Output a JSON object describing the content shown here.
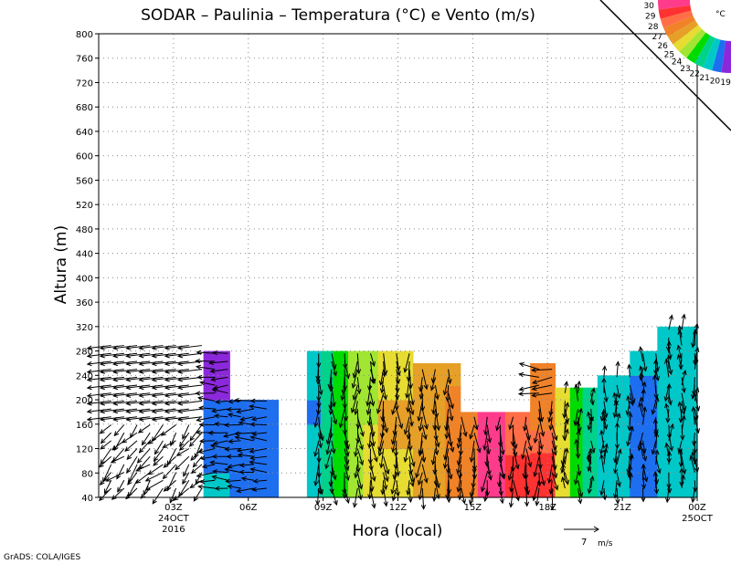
{
  "chart_data": {
    "type": "heatmap",
    "title": "SODAR – Paulinia – Temperatura (°C) e Vento (m/s)",
    "xlabel": "Hora (local)",
    "ylabel": "Altura (m)",
    "xlim": [
      0,
      24
    ],
    "ylim": [
      40,
      800
    ],
    "y_ticks": [
      40,
      80,
      120,
      160,
      200,
      240,
      280,
      320,
      360,
      400,
      440,
      480,
      520,
      560,
      600,
      640,
      680,
      720,
      760,
      800
    ],
    "x_ticks": [
      {
        "x": 3,
        "label": "03Z",
        "sub1": "24OCT",
        "sub2": "2016"
      },
      {
        "x": 6,
        "label": "06Z"
      },
      {
        "x": 9,
        "label": "09Z"
      },
      {
        "x": 12,
        "label": "12Z"
      },
      {
        "x": 15,
        "label": "15Z"
      },
      {
        "x": 18,
        "label": "18Z"
      },
      {
        "x": 21,
        "label": "21Z"
      },
      {
        "x": 24,
        "label": "00Z",
        "sub1": "25OCT"
      }
    ],
    "grid": true,
    "colorbar": {
      "unit": "°C",
      "levels": [
        30,
        29,
        28,
        27,
        26,
        25,
        24,
        23,
        22,
        21,
        20,
        19
      ],
      "labels": [
        "30",
        "29",
        "28",
        "27",
        "26",
        "25",
        "24",
        "23",
        "22",
        "21",
        "20",
        "19"
      ],
      "colors": [
        "#ff3c8c",
        "#ff3232",
        "#ff6e46",
        "#f08228",
        "#e6a028",
        "#e6dc32",
        "#a0e632",
        "#00dc00",
        "#00d28c",
        "#00c8c8",
        "#1e6ef0",
        "#8c28dc"
      ]
    },
    "columns": [
      {
        "x0": 4.2,
        "x1": 5.25,
        "top": 280,
        "temps": [
          21,
          20,
          20,
          20,
          19,
          19
        ]
      },
      {
        "x0": 5.25,
        "x1": 7.2,
        "top": 200,
        "temps": [
          20,
          20,
          20,
          20
        ]
      },
      {
        "x0": 8.35,
        "x1": 8.9,
        "top": 280,
        "temps": [
          21,
          21,
          21,
          20,
          21,
          21
        ]
      },
      {
        "x0": 8.9,
        "x1": 9.4,
        "top": 280,
        "temps": [
          22,
          22,
          22,
          22,
          22,
          22
        ]
      },
      {
        "x0": 9.4,
        "x1": 10.0,
        "top": 280,
        "temps": [
          23,
          23,
          23,
          23,
          23,
          23
        ]
      },
      {
        "x0": 10.0,
        "x1": 10.6,
        "top": 280,
        "temps": [
          24,
          24,
          24,
          24,
          24,
          24
        ]
      },
      {
        "x0": 10.6,
        "x1": 11.2,
        "top": 280,
        "temps": [
          25,
          25,
          25,
          24,
          24,
          24
        ]
      },
      {
        "x0": 11.2,
        "x1": 12.6,
        "top": 280,
        "temps": [
          25,
          25,
          26,
          26,
          25,
          25
        ]
      },
      {
        "x0": 12.6,
        "x1": 13.9,
        "top": 260,
        "temps": [
          26,
          26,
          26,
          26,
          26,
          26
        ]
      },
      {
        "x0": 13.9,
        "x1": 14.5,
        "top": 260,
        "temps": [
          27,
          27,
          27,
          27,
          27,
          26
        ]
      },
      {
        "x0": 14.5,
        "x1": 15.2,
        "top": 180,
        "temps": [
          27,
          27,
          27,
          27
        ]
      },
      {
        "x0": 15.2,
        "x1": 16.3,
        "top": 180,
        "temps": [
          30,
          30,
          30,
          30
        ]
      },
      {
        "x0": 16.3,
        "x1": 17.3,
        "top": 180,
        "temps": [
          29,
          29,
          28,
          28
        ]
      },
      {
        "x0": 17.3,
        "x1": 18.3,
        "top": 260,
        "temps": [
          29,
          29,
          28,
          27,
          27,
          27
        ]
      },
      {
        "x0": 18.3,
        "x1": 18.9,
        "top": 220,
        "temps": [
          25,
          25,
          25,
          25,
          25
        ]
      },
      {
        "x0": 18.9,
        "x1": 19.4,
        "top": 220,
        "temps": [
          23,
          23,
          23,
          23,
          23
        ]
      },
      {
        "x0": 19.4,
        "x1": 20.0,
        "top": 220,
        "temps": [
          22,
          22,
          22,
          22,
          22
        ]
      },
      {
        "x0": 20.0,
        "x1": 21.3,
        "top": 240,
        "temps": [
          21,
          21,
          21,
          21,
          21,
          21
        ]
      },
      {
        "x0": 21.3,
        "x1": 22.4,
        "top": 280,
        "temps": [
          20,
          20,
          20,
          20,
          20,
          21
        ]
      },
      {
        "x0": 22.4,
        "x1": 24.0,
        "top": 320,
        "temps": [
          21,
          21,
          21,
          21,
          21,
          21,
          21
        ]
      }
    ],
    "vector_scale": {
      "speed": 7,
      "unit": "m/s"
    },
    "credit": "GrADS: COLA/IGES"
  }
}
